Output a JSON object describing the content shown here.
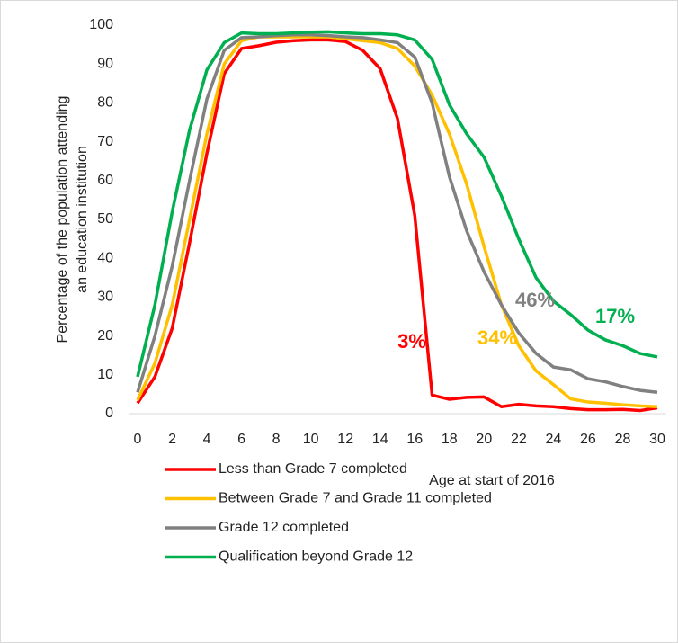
{
  "chart_data": {
    "type": "line",
    "y_label": [
      "Percentage of the population attending",
      "an education institution"
    ],
    "x_label": "Age at start of 2016",
    "x": [
      0,
      1,
      2,
      3,
      4,
      5,
      6,
      7,
      8,
      9,
      10,
      11,
      12,
      13,
      14,
      15,
      16,
      17,
      18,
      19,
      20,
      21,
      22,
      23,
      24,
      25,
      26,
      27,
      28,
      29,
      30
    ],
    "xlim": [
      0,
      30
    ],
    "xticks": [
      0,
      2,
      4,
      6,
      8,
      10,
      12,
      14,
      16,
      18,
      20,
      22,
      24,
      26,
      28,
      30
    ],
    "ylim": [
      0,
      100
    ],
    "yticks": [
      0,
      10,
      20,
      30,
      40,
      50,
      60,
      70,
      80,
      90,
      100
    ],
    "grid": false,
    "legend": "bottom",
    "series": [
      {
        "name": "Less than Grade 7 completed",
        "color": "#ff0000",
        "values": [
          2.7,
          9.5,
          22,
          44,
          67,
          87.5,
          94,
          94.7,
          95.6,
          96,
          96.2,
          96.2,
          95.8,
          93.5,
          88.8,
          76,
          51,
          4.8,
          3.7,
          4.2,
          4.3,
          1.8,
          2.4,
          2,
          1.8,
          1.3,
          1,
          1,
          1.1,
          0.8,
          1.5
        ]
      },
      {
        "name": "Between Grade 7 and Grade 11 completed",
        "color": "#ffc000",
        "values": [
          3.5,
          13,
          28,
          50,
          72,
          90,
          96,
          97,
          97,
          97,
          97,
          97,
          96.5,
          96,
          95.5,
          94,
          89.5,
          82,
          72,
          59,
          43,
          28,
          17.5,
          11,
          7.5,
          3.8,
          3,
          2.7,
          2.3,
          2,
          1.8
        ]
      },
      {
        "name": "Grade 12 completed",
        "color": "#808080",
        "values": [
          5.5,
          20,
          38,
          60,
          81,
          93.5,
          96.8,
          97,
          97.3,
          97.5,
          97.5,
          97.3,
          97,
          96.8,
          96.2,
          95.5,
          91.8,
          80,
          61,
          47,
          36.5,
          28,
          20.8,
          15.5,
          12,
          11.3,
          9,
          8.2,
          7,
          6,
          5.5
        ]
      },
      {
        "name": "Qualification beyond Grade 12",
        "color": "#00b050",
        "values": [
          9.5,
          28,
          52,
          73,
          88.5,
          95.5,
          98,
          97.8,
          97.8,
          98,
          98.2,
          98.3,
          98,
          97.8,
          97.8,
          97.5,
          96.2,
          91.2,
          79.5,
          72,
          66,
          56,
          45,
          35,
          29,
          25.5,
          21.5,
          19,
          17.5,
          15.5,
          14.6
        ]
      }
    ],
    "annotations": [
      {
        "text": "3%",
        "color": "#ff0000"
      },
      {
        "text": "34%",
        "color": "#ffc000"
      },
      {
        "text": "46%",
        "color": "#808080"
      },
      {
        "text": "17%",
        "color": "#00b050"
      }
    ]
  }
}
